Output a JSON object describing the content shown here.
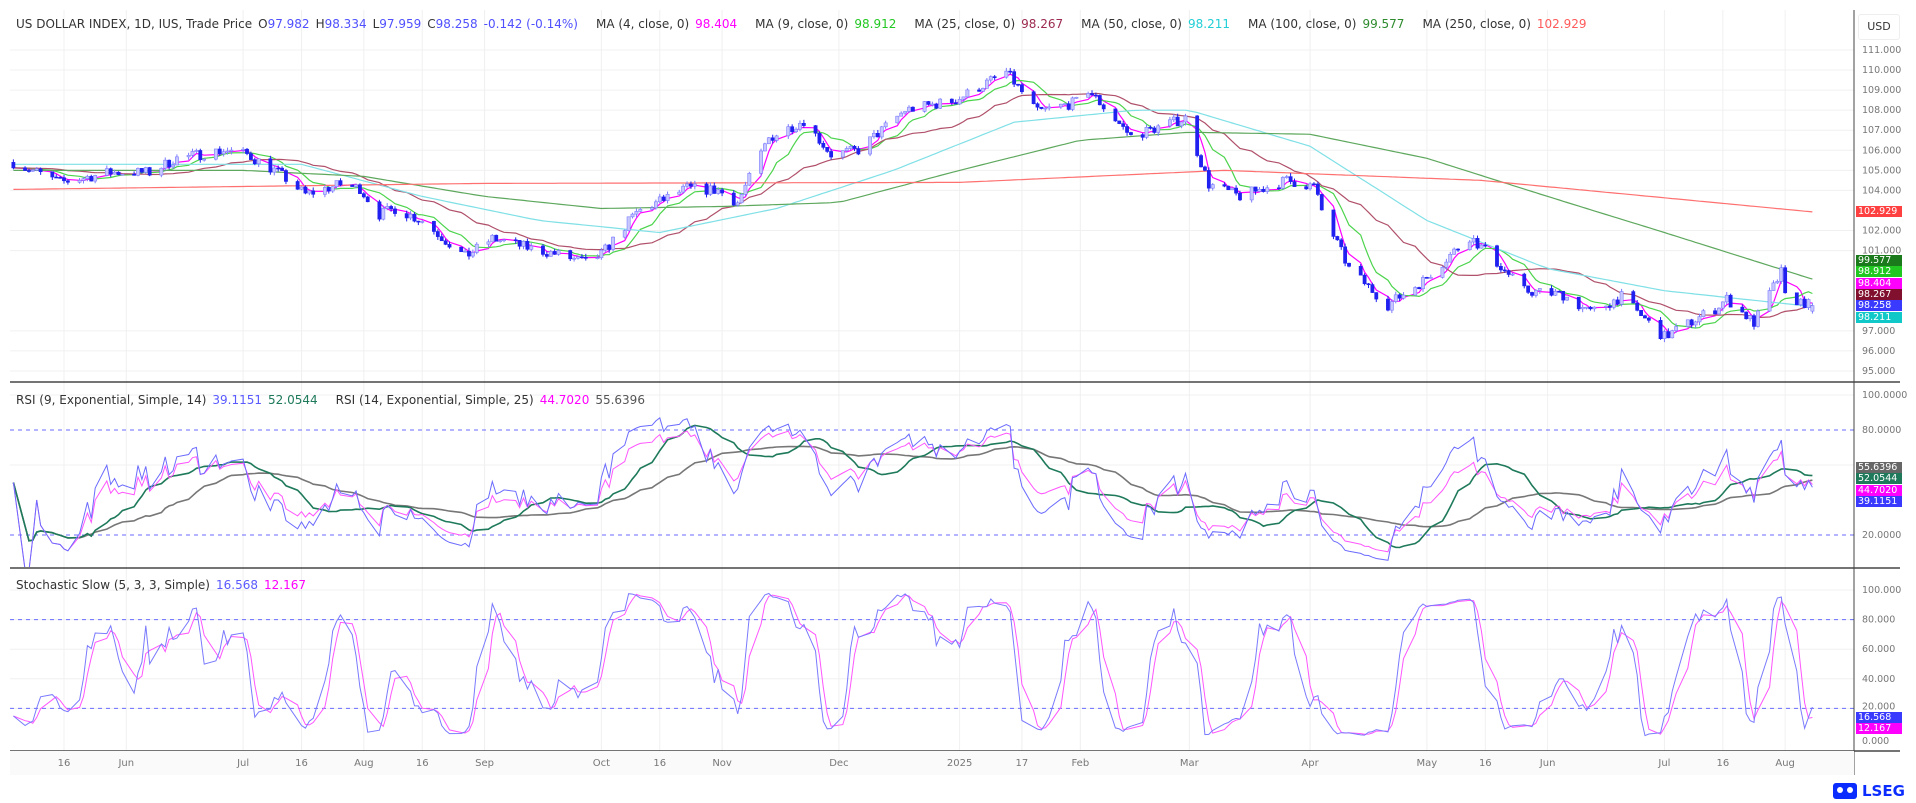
{
  "header": {
    "symbol": "US DOLLAR INDEX, 1D, IUS, Trade Price",
    "open_label": "O",
    "open": "97.982",
    "high_label": "H",
    "high": "98.334",
    "low_label": "L",
    "low": "97.959",
    "close_label": "C",
    "close": "98.258",
    "change": "-0.142 (-0.14%)",
    "ma": [
      {
        "label": "MA (4, close, 0)",
        "value": "98.404",
        "color": "#ff00ff"
      },
      {
        "label": "MA (9, close, 0)",
        "value": "98.912",
        "color": "#22c822"
      },
      {
        "label": "MA (25, close, 0)",
        "value": "98.267",
        "color": "#9c2a4e"
      },
      {
        "label": "MA (50, close, 0)",
        "value": "98.211",
        "color": "#22cfd6"
      },
      {
        "label": "MA (100, close, 0)",
        "value": "99.577",
        "color": "#2e8b2e"
      },
      {
        "label": "MA (250, close, 0)",
        "value": "102.929",
        "color": "#ff5a5a"
      }
    ],
    "currency": "USD"
  },
  "rsi_header": {
    "rsi1_label": "RSI (9, Exponential, Simple, 14)",
    "rsi1_value": "39.1151",
    "rsi1_ma": "52.0544",
    "rsi2_label": "RSI (14, Exponential, Simple, 25)",
    "rsi2_value": "44.7020",
    "rsi2_ma": "55.6396"
  },
  "stoch_header": {
    "label": "Stochastic Slow (5, 3, 3, Simple)",
    "k": "16.568",
    "d": "12.167"
  },
  "tags": {
    "price": [
      {
        "value": "99.577",
        "color": "#1b7a1b"
      },
      {
        "value": "98.912",
        "color": "#22c822"
      },
      {
        "value": "98.404",
        "color": "#ff00ff"
      },
      {
        "value": "98.267",
        "color": "#80102e"
      },
      {
        "value": "98.258",
        "color": "#3a3aff"
      },
      {
        "value": "98.211",
        "color": "#10c8c8"
      }
    ],
    "ma250": {
      "value": "102.929",
      "color": "#ff4040"
    },
    "rsi": [
      {
        "value": "55.6396",
        "color": "#666666"
      },
      {
        "value": "52.0544",
        "color": "#1e7a5a"
      },
      {
        "value": "44.7020",
        "color": "#ff00ff"
      },
      {
        "value": "39.1151",
        "color": "#3a3aff"
      }
    ],
    "stoch": [
      {
        "value": "16.568",
        "color": "#3a3aff"
      },
      {
        "value": "12.167",
        "color": "#ff00ff"
      }
    ]
  },
  "logo": {
    "text": "LSEG"
  },
  "chart_data": {
    "type": "candlestick",
    "title": "US DOLLAR INDEX, 1D, IUS, Trade Price",
    "price_axis": {
      "ticks": [
        "111.000",
        "110.000",
        "109.000",
        "108.000",
        "107.000",
        "106.000",
        "105.000",
        "104.000",
        "102.000",
        "101.000",
        "97.000",
        "96.000",
        "95.000"
      ],
      "range": [
        94.5,
        111.5
      ]
    },
    "rsi_axis": {
      "ticks": [
        "100.0000",
        "80.0000",
        "20.0000"
      ],
      "bands": [
        80,
        20
      ]
    },
    "stoch_axis": {
      "ticks": [
        "100.000",
        "80.000",
        "60.000",
        "40.000",
        "20.000",
        "0.000"
      ],
      "bands": [
        80,
        20
      ]
    },
    "x_ticks": [
      {
        "label": "16",
        "date": "2024-05-16"
      },
      {
        "label": "Jun",
        "date": "2024-06-01"
      },
      {
        "label": "Jul",
        "date": "2024-07-01"
      },
      {
        "label": "16",
        "date": "2024-07-16"
      },
      {
        "label": "Aug",
        "date": "2024-08-01"
      },
      {
        "label": "16",
        "date": "2024-08-16"
      },
      {
        "label": "Sep",
        "date": "2024-09-01"
      },
      {
        "label": "Oct",
        "date": "2024-10-01"
      },
      {
        "label": "16",
        "date": "2024-10-16"
      },
      {
        "label": "Nov",
        "date": "2024-11-01"
      },
      {
        "label": "Dec",
        "date": "2024-12-01"
      },
      {
        "label": "2025",
        "date": "2025-01-01"
      },
      {
        "label": "17",
        "date": "2025-01-17"
      },
      {
        "label": "Feb",
        "date": "2025-02-01"
      },
      {
        "label": "Mar",
        "date": "2025-03-01"
      },
      {
        "label": "Apr",
        "date": "2025-04-01"
      },
      {
        "label": "May",
        "date": "2025-05-01"
      },
      {
        "label": "16",
        "date": "2025-05-16"
      },
      {
        "label": "Jun",
        "date": "2025-06-01"
      },
      {
        "label": "Jul",
        "date": "2025-07-01"
      },
      {
        "label": "16",
        "date": "2025-07-16"
      },
      {
        "label": "Aug",
        "date": "2025-08-01"
      }
    ],
    "close_keypoints": [
      [
        "2024-05-03",
        105.4
      ],
      [
        "2024-05-15",
        104.4
      ],
      [
        "2024-05-28",
        104.9
      ],
      [
        "2024-06-07",
        104.9
      ],
      [
        "2024-06-14",
        105.6
      ],
      [
        "2024-06-26",
        106.0
      ],
      [
        "2024-07-02",
        105.8
      ],
      [
        "2024-07-10",
        104.9
      ],
      [
        "2024-07-17",
        103.8
      ],
      [
        "2024-07-26",
        104.3
      ],
      [
        "2024-07-31",
        104.1
      ],
      [
        "2024-08-05",
        102.8
      ],
      [
        "2024-08-09",
        103.1
      ],
      [
        "2024-08-16",
        102.5
      ],
      [
        "2024-08-27",
        100.7
      ],
      [
        "2024-09-03",
        101.6
      ],
      [
        "2024-09-13",
        101.1
      ],
      [
        "2024-09-20",
        100.8
      ],
      [
        "2024-09-27",
        100.4
      ],
      [
        "2024-10-01",
        100.8
      ],
      [
        "2024-10-10",
        102.9
      ],
      [
        "2024-10-23",
        104.1
      ],
      [
        "2024-10-31",
        104.0
      ],
      [
        "2024-11-05",
        103.4
      ],
      [
        "2024-11-13",
        106.6
      ],
      [
        "2024-11-22",
        107.5
      ],
      [
        "2024-11-29",
        105.8
      ],
      [
        "2024-12-06",
        106.0
      ],
      [
        "2024-12-18",
        108.0
      ],
      [
        "2024-12-31",
        108.5
      ],
      [
        "2025-01-13",
        109.9
      ],
      [
        "2025-01-21",
        107.9
      ],
      [
        "2025-01-31",
        108.4
      ],
      [
        "2025-02-03",
        109.0
      ],
      [
        "2025-02-14",
        106.7
      ],
      [
        "2025-02-28",
        107.6
      ],
      [
        "2025-03-06",
        104.3
      ],
      [
        "2025-03-14",
        103.7
      ],
      [
        "2025-03-26",
        104.5
      ],
      [
        "2025-04-02",
        104.2
      ],
      [
        "2025-04-04",
        103.0
      ],
      [
        "2025-04-11",
        100.1
      ],
      [
        "2025-04-21",
        98.3
      ],
      [
        "2025-04-30",
        99.5
      ],
      [
        "2025-05-12",
        101.7
      ],
      [
        "2025-05-16",
        101.0
      ],
      [
        "2025-05-26",
        99.0
      ],
      [
        "2025-06-05",
        98.8
      ],
      [
        "2025-06-12",
        97.9
      ],
      [
        "2025-06-20",
        98.7
      ],
      [
        "2025-06-27",
        97.4
      ],
      [
        "2025-07-01",
        96.7
      ],
      [
        "2025-07-14",
        98.1
      ],
      [
        "2025-07-17",
        98.6
      ],
      [
        "2025-07-24",
        97.4
      ],
      [
        "2025-07-31",
        99.9
      ],
      [
        "2025-08-01",
        98.7
      ],
      [
        "2025-08-08",
        98.258
      ]
    ],
    "series": [
      {
        "name": "MA (4, close, 0)",
        "color": "#ff00ff",
        "period": 4
      },
      {
        "name": "MA (9, close, 0)",
        "color": "#4cd44c",
        "period": 9
      },
      {
        "name": "MA (25, close, 0)",
        "color": "#b0506a",
        "period": 25
      },
      {
        "name": "MA (50, close, 0)",
        "color": "#7fe0e6",
        "keypoints": [
          [
            "2024-05-03",
            105.3
          ],
          [
            "2024-07-16",
            105.3
          ],
          [
            "2024-08-16",
            103.7
          ],
          [
            "2024-09-15",
            102.5
          ],
          [
            "2024-10-16",
            101.9
          ],
          [
            "2024-11-15",
            103.1
          ],
          [
            "2024-12-15",
            105.0
          ],
          [
            "2025-01-15",
            107.4
          ],
          [
            "2025-02-15",
            108.0
          ],
          [
            "2025-03-01",
            108.0
          ],
          [
            "2025-04-01",
            106.2
          ],
          [
            "2025-05-01",
            102.5
          ],
          [
            "2025-06-01",
            100.1
          ],
          [
            "2025-07-01",
            99.0
          ],
          [
            "2025-08-08",
            98.211
          ]
        ]
      },
      {
        "name": "MA (100, close, 0)",
        "color": "#5ea85e",
        "keypoints": [
          [
            "2024-05-03",
            105.0
          ],
          [
            "2024-07-01",
            105.0
          ],
          [
            "2024-08-01",
            104.7
          ],
          [
            "2024-09-01",
            103.7
          ],
          [
            "2024-10-01",
            103.1
          ],
          [
            "2024-11-01",
            103.2
          ],
          [
            "2024-12-01",
            103.4
          ],
          [
            "2025-01-01",
            105.0
          ],
          [
            "2025-02-01",
            106.5
          ],
          [
            "2025-03-01",
            106.9
          ],
          [
            "2025-04-01",
            106.8
          ],
          [
            "2025-05-01",
            105.6
          ],
          [
            "2025-06-01",
            103.7
          ],
          [
            "2025-07-01",
            101.9
          ],
          [
            "2025-08-08",
            99.577
          ]
        ]
      },
      {
        "name": "MA (250, close, 0)",
        "color": "#ff7070",
        "keypoints": [
          [
            "2024-05-03",
            104.05
          ],
          [
            "2024-09-01",
            104.35
          ],
          [
            "2025-01-01",
            104.4
          ],
          [
            "2025-03-10",
            105.0
          ],
          [
            "2025-05-15",
            104.5
          ],
          [
            "2025-08-08",
            102.929
          ]
        ]
      }
    ],
    "candle_colors": {
      "up": "#7b7bff",
      "down": "#2020f0"
    },
    "rsi_colors": {
      "rsi1": "#6b6bff",
      "rsi1_ma": "#1e7a5a",
      "rsi2": "#ff55ff",
      "rsi2_ma": "#777777",
      "band": "#6b6bff"
    },
    "stoch_colors": {
      "k": "#7a7aff",
      "d": "#ff55ff",
      "band": "#6b6bff"
    },
    "grid": true
  }
}
